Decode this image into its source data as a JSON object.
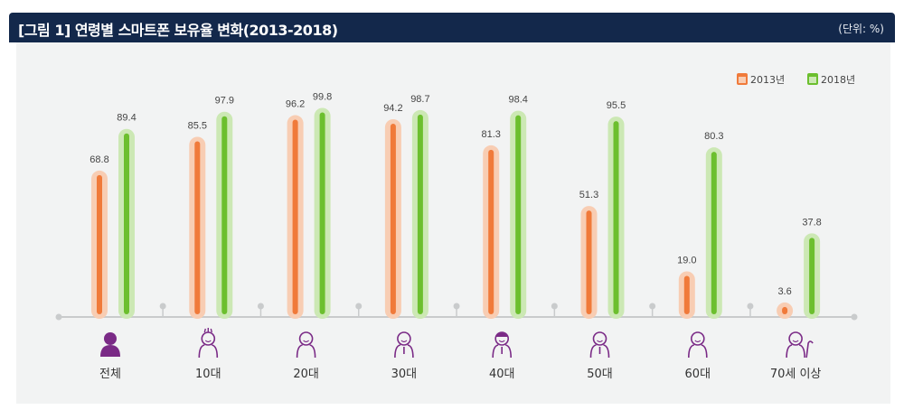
{
  "header": {
    "title": "[그림 1]  연령별 스마트폰 보유율 변화(2013-2018)",
    "unit": "(단위: %)"
  },
  "colors": {
    "2013": "#f07a3a",
    "2013_halo": "#f8cdb3",
    "2018": "#6cbf2e",
    "2018_halo": "#cce8b4",
    "icon": "#7a2a86",
    "header_bg": "#13284b"
  },
  "chart_data": {
    "type": "bar",
    "categories": [
      "전체",
      "10대",
      "20대",
      "30대",
      "40대",
      "50대",
      "60대",
      "70세 이상"
    ],
    "category_icons": [
      "person-filled-icon",
      "teen-icon",
      "twenties-icon",
      "thirties-icon",
      "forties-icon",
      "fifties-icon",
      "sixties-icon",
      "senior-cane-icon"
    ],
    "series": [
      {
        "name": "2013년",
        "values": [
          68.8,
          85.5,
          96.2,
          94.2,
          81.3,
          51.3,
          19.0,
          3.6
        ]
      },
      {
        "name": "2018년",
        "values": [
          89.4,
          97.9,
          99.8,
          98.7,
          98.4,
          95.5,
          80.3,
          37.8
        ]
      }
    ],
    "ylim": [
      0,
      100
    ],
    "legend": "top-right",
    "grid": false
  }
}
